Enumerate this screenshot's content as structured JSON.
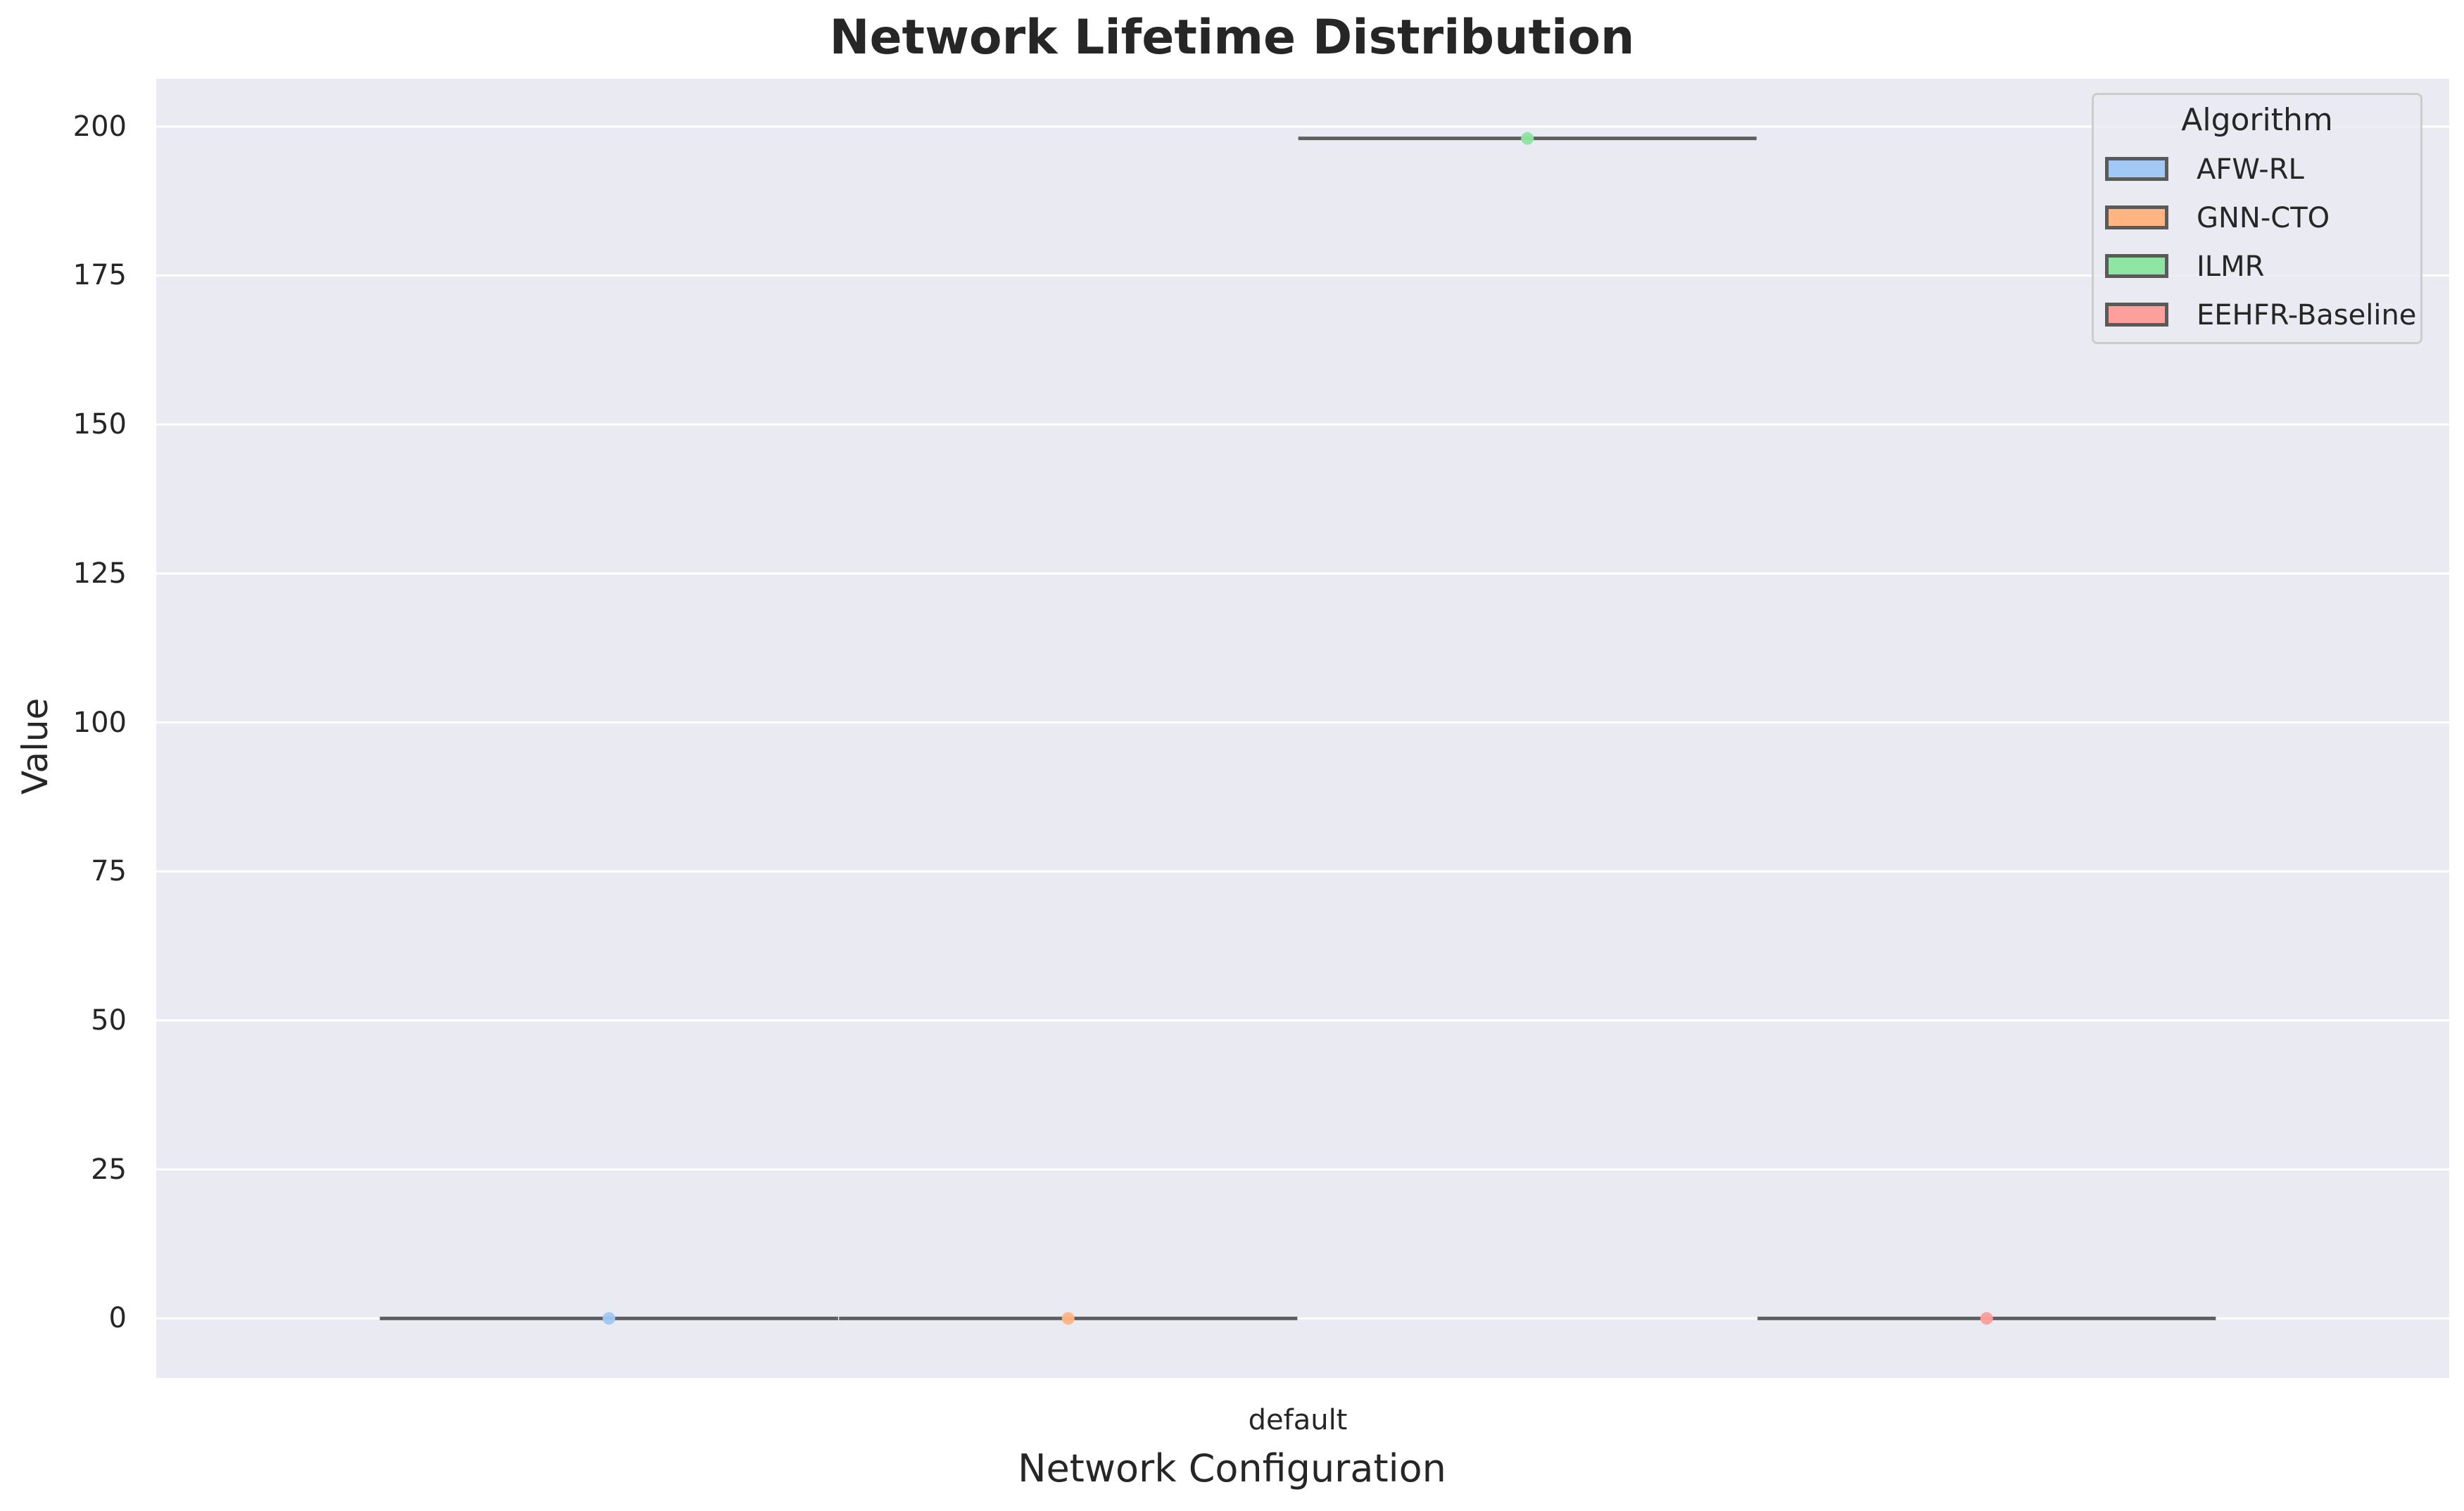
{
  "chart_data": {
    "type": "box",
    "title": "Network Lifetime Distribution",
    "xlabel": "Network Configuration",
    "ylabel": "Value",
    "categories": [
      "default"
    ],
    "ylim": [
      -10,
      208
    ],
    "yticks": [
      0,
      25,
      50,
      75,
      100,
      125,
      150,
      175,
      200
    ],
    "grid": true,
    "legend": {
      "title": "Algorithm",
      "position": "top-right"
    },
    "series": [
      {
        "name": "AFW-RL",
        "color": "#a1c9f4",
        "values": [
          0
        ]
      },
      {
        "name": "GNN-CTO",
        "color": "#ffb482",
        "values": [
          0
        ]
      },
      {
        "name": "ILMR",
        "color": "#8de5a1",
        "values": [
          198
        ]
      },
      {
        "name": "EEHFR-Baseline",
        "color": "#ff9f9b",
        "values": [
          0
        ]
      }
    ]
  },
  "colors": {
    "plot_bg": "#eaeaf2",
    "grid": "#ffffff",
    "box_line": "#5f5f5f"
  }
}
